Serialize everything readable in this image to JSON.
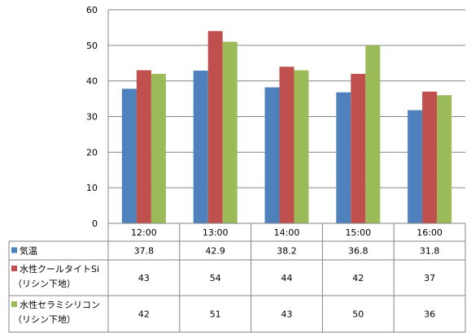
{
  "chart_data": {
    "type": "bar",
    "categories": [
      "12:00",
      "13:00",
      "14:00",
      "15:00",
      "16:00"
    ],
    "series": [
      {
        "name": "気温",
        "color": "#4F81BD",
        "values": [
          37.8,
          42.9,
          38.2,
          36.8,
          31.8
        ],
        "table_values": [
          "37.8",
          "42.9",
          "38.2",
          "36.8",
          "31.8"
        ]
      },
      {
        "name": "水性クールタイトSi",
        "name_line2": "（リシン下地）",
        "color": "#C0504D",
        "values": [
          43,
          54,
          44,
          42,
          37
        ],
        "table_values": [
          "43",
          "54",
          "44",
          "42",
          "37"
        ]
      },
      {
        "name": "水性セラミシリコン",
        "name_line2": "（リシン下地）",
        "color": "#9BBB59",
        "values": [
          42,
          51,
          43,
          50,
          36
        ],
        "table_values": [
          "42",
          "51",
          "43",
          "50",
          "36"
        ]
      }
    ],
    "ylim": [
      0,
      60
    ],
    "yticks": [
      0,
      10,
      20,
      30,
      40,
      50,
      60
    ],
    "grid": true,
    "legend": "data-table"
  }
}
